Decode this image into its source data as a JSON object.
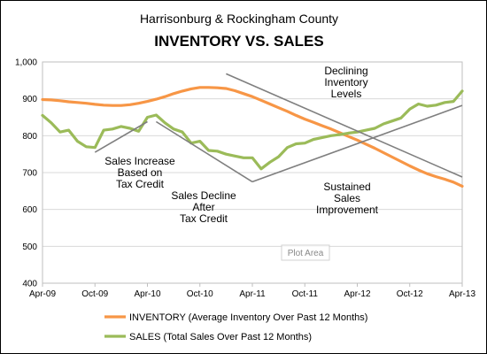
{
  "chart_data": {
    "type": "line",
    "title": "INVENTORY  VS.  SALES",
    "subtitle": "Harrisonburg  &  Rockingham County",
    "xlabel": "",
    "ylabel": "",
    "ylim": [
      400,
      1000
    ],
    "yticks": [
      400,
      500,
      600,
      700,
      800,
      900,
      1000
    ],
    "ytick_labels": [
      "400",
      "500",
      "600",
      "700",
      "800",
      "900",
      "1,000"
    ],
    "xticks": [
      "Apr-09",
      "Oct-09",
      "Apr-10",
      "Oct-10",
      "Apr-11",
      "Oct-11",
      "Apr-12",
      "Oct-12",
      "Apr-13"
    ],
    "x": [
      "Apr-09",
      "May-09",
      "Jun-09",
      "Jul-09",
      "Aug-09",
      "Sep-09",
      "Oct-09",
      "Nov-09",
      "Dec-09",
      "Jan-10",
      "Feb-10",
      "Mar-10",
      "Apr-10",
      "May-10",
      "Jun-10",
      "Jul-10",
      "Aug-10",
      "Sep-10",
      "Oct-10",
      "Nov-10",
      "Dec-10",
      "Jan-11",
      "Feb-11",
      "Mar-11",
      "Apr-11",
      "May-11",
      "Jun-11",
      "Jul-11",
      "Aug-11",
      "Sep-11",
      "Oct-11",
      "Nov-11",
      "Dec-11",
      "Jan-12",
      "Feb-12",
      "Mar-12",
      "Apr-12",
      "May-12",
      "Jun-12",
      "Jul-12",
      "Aug-12",
      "Sep-12",
      "Oct-12",
      "Nov-12",
      "Dec-12",
      "Jan-13",
      "Feb-13",
      "Mar-13",
      "Apr-13"
    ],
    "series": [
      {
        "name": "INVENTORY (Average Inventory Over Past 12 Months)",
        "color": "#F79646",
        "values": [
          898,
          897,
          895,
          892,
          890,
          888,
          885,
          883,
          882,
          882,
          884,
          888,
          893,
          899,
          906,
          914,
          921,
          927,
          931,
          931,
          930,
          928,
          922,
          914,
          906,
          896,
          886,
          876,
          866,
          855,
          845,
          836,
          827,
          818,
          808,
          798,
          788,
          777,
          766,
          754,
          742,
          730,
          718,
          707,
          697,
          689,
          682,
          674,
          663
        ]
      },
      {
        "name": "SALES (Total Sales Over Past 12 Months)",
        "color": "#9BBB59",
        "values": [
          855,
          835,
          810,
          815,
          785,
          770,
          768,
          815,
          818,
          825,
          820,
          812,
          850,
          856,
          835,
          818,
          810,
          780,
          785,
          760,
          758,
          750,
          745,
          740,
          740,
          710,
          728,
          743,
          768,
          778,
          780,
          790,
          795,
          800,
          803,
          807,
          810,
          815,
          820,
          832,
          840,
          848,
          872,
          886,
          880,
          883,
          890,
          893,
          921
        ]
      }
    ],
    "annotations": [
      {
        "lines": [
          "Sales Increase",
          "Based on",
          "Tax Credit"
        ]
      },
      {
        "lines": [
          "Sales Decline",
          "After",
          "Tax Credit"
        ]
      },
      {
        "lines": [
          "Declining",
          "Inventory",
          "Levels"
        ]
      },
      {
        "lines": [
          "Sustained",
          "Sales",
          "Improvement"
        ]
      }
    ],
    "trendlines": [
      {
        "from": [
          "Oct-09",
          755
        ],
        "to": [
          "Apr-10",
          838
        ]
      },
      {
        "from": [
          "May-10",
          838
        ],
        "to": [
          "Apr-11",
          675
        ]
      },
      {
        "from": [
          "Jan-11",
          968
        ],
        "to": [
          "Apr-13",
          688
        ]
      },
      {
        "from": [
          "Apr-11",
          675
        ],
        "to": [
          "Apr-13",
          882
        ]
      }
    ],
    "plot_area_label": "Plot Area",
    "grid": "horizontal",
    "legend": "bottom"
  }
}
